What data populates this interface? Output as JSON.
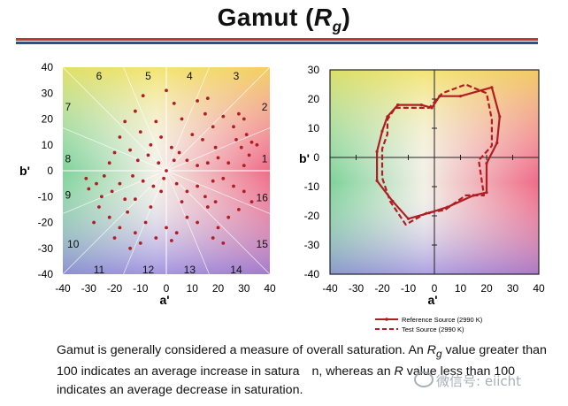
{
  "slide": {
    "title_main": "Gamut (",
    "title_var": "R",
    "title_sub": "g",
    "title_close": ")",
    "caption": {
      "p1": "Gamut is generally considered a measure of overall saturation. An ",
      "var1": "R",
      "sub1": "g",
      "p2": " value greater than 100 indicates an average increase in satura",
      "p3": "n, whereas an ",
      "var2": "R",
      "p4": " value less than 100 indicates an average decrease in saturation."
    },
    "watermark": "微信号: eiicht"
  },
  "chart_data": [
    {
      "type": "scatter",
      "title": "",
      "xlabel": "a'",
      "ylabel": "b'",
      "xlim": [
        -40,
        40
      ],
      "ylim": [
        -40,
        40
      ],
      "xticks": [
        "-40",
        "-30",
        "-20",
        "-10",
        "0",
        "10",
        "20",
        "30",
        "40"
      ],
      "yticks": [
        "40",
        "30",
        "20",
        "10",
        "0",
        "-10",
        "-20",
        "-30",
        "-40"
      ],
      "hue_bin_labels": [
        {
          "label": "1",
          "x": 38,
          "y": 5
        },
        {
          "label": "2",
          "x": 38,
          "y": 25
        },
        {
          "label": "3",
          "x": 27,
          "y": 37
        },
        {
          "label": "4",
          "x": 9,
          "y": 37
        },
        {
          "label": "5",
          "x": -7,
          "y": 37
        },
        {
          "label": "6",
          "x": -26,
          "y": 37
        },
        {
          "label": "7",
          "x": -38,
          "y": 25
        },
        {
          "label": "8",
          "x": -38,
          "y": 5
        },
        {
          "label": "9",
          "x": -38,
          "y": -9
        },
        {
          "label": "10",
          "x": -36,
          "y": -28
        },
        {
          "label": "11",
          "x": -26,
          "y": -38
        },
        {
          "label": "12",
          "x": -7,
          "y": -38
        },
        {
          "label": "13",
          "x": 9,
          "y": -38
        },
        {
          "label": "14",
          "x": 27,
          "y": -38
        },
        {
          "label": "15",
          "x": 37,
          "y": -28
        },
        {
          "label": "16",
          "x": 37,
          "y": -10
        }
      ],
      "points": [
        [
          -12,
          23
        ],
        [
          -9,
          29
        ],
        [
          -4,
          19
        ],
        [
          0,
          31
        ],
        [
          3,
          26
        ],
        [
          6,
          20
        ],
        [
          10,
          14
        ],
        [
          -10,
          15
        ],
        [
          -6,
          10
        ],
        [
          -2,
          13
        ],
        [
          2,
          9
        ],
        [
          5,
          7
        ],
        [
          8,
          4
        ],
        [
          12,
          27
        ],
        [
          15,
          22
        ],
        [
          16,
          28
        ],
        [
          18,
          17
        ],
        [
          14,
          12
        ],
        [
          19,
          9
        ],
        [
          22,
          21
        ],
        [
          26,
          17
        ],
        [
          28,
          22
        ],
        [
          30,
          20
        ],
        [
          31,
          14
        ],
        [
          33,
          11
        ],
        [
          35,
          10
        ],
        [
          29,
          9
        ],
        [
          32,
          6
        ],
        [
          30,
          2
        ],
        [
          24,
          3
        ],
        [
          20,
          5
        ],
        [
          16,
          3
        ],
        [
          12,
          2
        ],
        [
          -16,
          19
        ],
        [
          -18,
          13
        ],
        [
          -20,
          7
        ],
        [
          -22,
          3
        ],
        [
          -14,
          8
        ],
        [
          -11,
          4
        ],
        [
          -7,
          6
        ],
        [
          -3,
          3
        ],
        [
          -24,
          -2
        ],
        [
          -27,
          -5
        ],
        [
          -31,
          -3
        ],
        [
          -30,
          -7
        ],
        [
          -25,
          -10
        ],
        [
          -21,
          -8
        ],
        [
          -18,
          -5
        ],
        [
          -13,
          -2
        ],
        [
          -9,
          -4
        ],
        [
          -5,
          -6
        ],
        [
          -2,
          -8
        ],
        [
          4,
          -5
        ],
        [
          8,
          -8
        ],
        [
          12,
          -6
        ],
        [
          15,
          -10
        ],
        [
          18,
          -4
        ],
        [
          22,
          -3
        ],
        [
          26,
          -6
        ],
        [
          30,
          -8
        ],
        [
          33,
          -12
        ],
        [
          28,
          -15
        ],
        [
          24,
          -18
        ],
        [
          20,
          -22
        ],
        [
          16,
          -14
        ],
        [
          12,
          -20
        ],
        [
          8,
          -18
        ],
        [
          4,
          -24
        ],
        [
          0,
          -22
        ],
        [
          -4,
          -26
        ],
        [
          -8,
          -20
        ],
        [
          -12,
          -24
        ],
        [
          -15,
          -16
        ],
        [
          -18,
          -22
        ],
        [
          -22,
          -18
        ],
        [
          -26,
          -14
        ],
        [
          -28,
          -20
        ],
        [
          -20,
          -26
        ],
        [
          -14,
          -30
        ],
        [
          -10,
          -28
        ],
        [
          2,
          -27
        ],
        [
          18,
          -26
        ],
        [
          22,
          -28
        ],
        [
          -6,
          -14
        ],
        [
          6,
          -12
        ],
        [
          -16,
          -11
        ],
        [
          0,
          0
        ],
        [
          -1,
          -3
        ],
        [
          3,
          4
        ],
        [
          27,
          12
        ],
        [
          -12,
          -11
        ],
        [
          19,
          -12
        ]
      ]
    },
    {
      "type": "line",
      "title": "",
      "xlabel": "a'",
      "ylabel": "b'",
      "xlim": [
        -40,
        40
      ],
      "ylim": [
        -40,
        30
      ],
      "xticks": [
        "-40",
        "-30",
        "-20",
        "-10",
        "0",
        "10",
        "20",
        "30",
        "40"
      ],
      "yticks": [
        "30",
        "20",
        "10",
        "0",
        "-10",
        "-20",
        "-30",
        "-40"
      ],
      "legend_position": "bottom-left",
      "series": [
        {
          "name": "Reference Source (2990 K)",
          "style": "solid",
          "color": "#b01e23",
          "points": [
            [
              -14,
              18
            ],
            [
              -5,
              18
            ],
            [
              -1,
              17
            ],
            [
              2,
              21
            ],
            [
              10,
              21
            ],
            [
              22,
              24
            ],
            [
              25,
              14
            ],
            [
              24,
              5
            ],
            [
              20,
              -2
            ],
            [
              20,
              -12
            ],
            [
              15,
              -13
            ],
            [
              5,
              -17
            ],
            [
              -2,
              -19
            ],
            [
              -10,
              -21
            ],
            [
              -16,
              -15
            ],
            [
              -22,
              -8
            ],
            [
              -22,
              2
            ],
            [
              -20,
              9
            ],
            [
              -18,
              14
            ],
            [
              -14,
              18
            ]
          ]
        },
        {
          "name": "Test Source (2990 K)",
          "style": "dashed",
          "color": "#b01e23",
          "points": [
            [
              -15,
              17
            ],
            [
              -6,
              17
            ],
            [
              -2,
              17
            ],
            [
              3,
              22
            ],
            [
              12,
              25
            ],
            [
              20,
              22
            ],
            [
              22,
              13
            ],
            [
              22,
              4
            ],
            [
              17,
              -1
            ],
            [
              19,
              -13
            ],
            [
              12,
              -13
            ],
            [
              4,
              -18
            ],
            [
              -3,
              -19
            ],
            [
              -11,
              -23
            ],
            [
              -17,
              -15
            ],
            [
              -20,
              -7
            ],
            [
              -20,
              3
            ],
            [
              -18,
              8
            ],
            [
              -18,
              13
            ],
            [
              -15,
              17
            ]
          ]
        }
      ]
    }
  ]
}
